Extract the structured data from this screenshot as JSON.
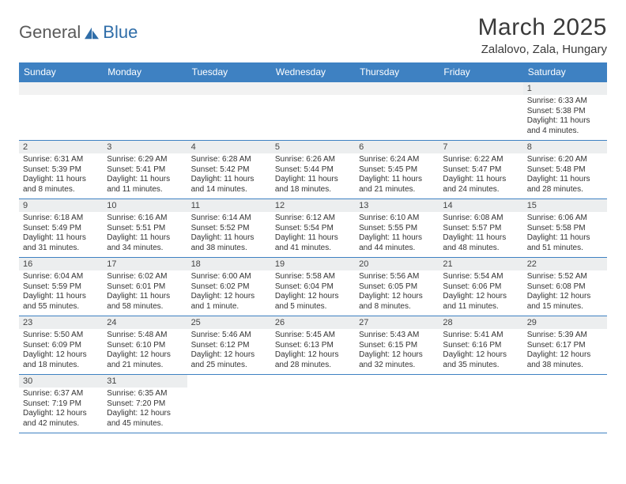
{
  "brand": {
    "text1": "General",
    "text2": "Blue",
    "color1": "#5a5a5a",
    "color2": "#2f6da8",
    "sail": "#2f6da8"
  },
  "title": "March 2025",
  "location": "Zalalovo, Zala, Hungary",
  "colors": {
    "headerBg": "#3e81c2",
    "headerText": "#ffffff",
    "rowBorder": "#3e81c2",
    "dayStripBg": "#eceeef",
    "blankBg": "#f2f2f2",
    "textColor": "#333333"
  },
  "days": [
    "Sunday",
    "Monday",
    "Tuesday",
    "Wednesday",
    "Thursday",
    "Friday",
    "Saturday"
  ],
  "weeks": [
    [
      null,
      null,
      null,
      null,
      null,
      null,
      {
        "n": "1",
        "sr": "Sunrise: 6:33 AM",
        "ss": "Sunset: 5:38 PM",
        "dl": "Daylight: 11 hours and 4 minutes."
      }
    ],
    [
      {
        "n": "2",
        "sr": "Sunrise: 6:31 AM",
        "ss": "Sunset: 5:39 PM",
        "dl": "Daylight: 11 hours and 8 minutes."
      },
      {
        "n": "3",
        "sr": "Sunrise: 6:29 AM",
        "ss": "Sunset: 5:41 PM",
        "dl": "Daylight: 11 hours and 11 minutes."
      },
      {
        "n": "4",
        "sr": "Sunrise: 6:28 AM",
        "ss": "Sunset: 5:42 PM",
        "dl": "Daylight: 11 hours and 14 minutes."
      },
      {
        "n": "5",
        "sr": "Sunrise: 6:26 AM",
        "ss": "Sunset: 5:44 PM",
        "dl": "Daylight: 11 hours and 18 minutes."
      },
      {
        "n": "6",
        "sr": "Sunrise: 6:24 AM",
        "ss": "Sunset: 5:45 PM",
        "dl": "Daylight: 11 hours and 21 minutes."
      },
      {
        "n": "7",
        "sr": "Sunrise: 6:22 AM",
        "ss": "Sunset: 5:47 PM",
        "dl": "Daylight: 11 hours and 24 minutes."
      },
      {
        "n": "8",
        "sr": "Sunrise: 6:20 AM",
        "ss": "Sunset: 5:48 PM",
        "dl": "Daylight: 11 hours and 28 minutes."
      }
    ],
    [
      {
        "n": "9",
        "sr": "Sunrise: 6:18 AM",
        "ss": "Sunset: 5:49 PM",
        "dl": "Daylight: 11 hours and 31 minutes."
      },
      {
        "n": "10",
        "sr": "Sunrise: 6:16 AM",
        "ss": "Sunset: 5:51 PM",
        "dl": "Daylight: 11 hours and 34 minutes."
      },
      {
        "n": "11",
        "sr": "Sunrise: 6:14 AM",
        "ss": "Sunset: 5:52 PM",
        "dl": "Daylight: 11 hours and 38 minutes."
      },
      {
        "n": "12",
        "sr": "Sunrise: 6:12 AM",
        "ss": "Sunset: 5:54 PM",
        "dl": "Daylight: 11 hours and 41 minutes."
      },
      {
        "n": "13",
        "sr": "Sunrise: 6:10 AM",
        "ss": "Sunset: 5:55 PM",
        "dl": "Daylight: 11 hours and 44 minutes."
      },
      {
        "n": "14",
        "sr": "Sunrise: 6:08 AM",
        "ss": "Sunset: 5:57 PM",
        "dl": "Daylight: 11 hours and 48 minutes."
      },
      {
        "n": "15",
        "sr": "Sunrise: 6:06 AM",
        "ss": "Sunset: 5:58 PM",
        "dl": "Daylight: 11 hours and 51 minutes."
      }
    ],
    [
      {
        "n": "16",
        "sr": "Sunrise: 6:04 AM",
        "ss": "Sunset: 5:59 PM",
        "dl": "Daylight: 11 hours and 55 minutes."
      },
      {
        "n": "17",
        "sr": "Sunrise: 6:02 AM",
        "ss": "Sunset: 6:01 PM",
        "dl": "Daylight: 11 hours and 58 minutes."
      },
      {
        "n": "18",
        "sr": "Sunrise: 6:00 AM",
        "ss": "Sunset: 6:02 PM",
        "dl": "Daylight: 12 hours and 1 minute."
      },
      {
        "n": "19",
        "sr": "Sunrise: 5:58 AM",
        "ss": "Sunset: 6:04 PM",
        "dl": "Daylight: 12 hours and 5 minutes."
      },
      {
        "n": "20",
        "sr": "Sunrise: 5:56 AM",
        "ss": "Sunset: 6:05 PM",
        "dl": "Daylight: 12 hours and 8 minutes."
      },
      {
        "n": "21",
        "sr": "Sunrise: 5:54 AM",
        "ss": "Sunset: 6:06 PM",
        "dl": "Daylight: 12 hours and 11 minutes."
      },
      {
        "n": "22",
        "sr": "Sunrise: 5:52 AM",
        "ss": "Sunset: 6:08 PM",
        "dl": "Daylight: 12 hours and 15 minutes."
      }
    ],
    [
      {
        "n": "23",
        "sr": "Sunrise: 5:50 AM",
        "ss": "Sunset: 6:09 PM",
        "dl": "Daylight: 12 hours and 18 minutes."
      },
      {
        "n": "24",
        "sr": "Sunrise: 5:48 AM",
        "ss": "Sunset: 6:10 PM",
        "dl": "Daylight: 12 hours and 21 minutes."
      },
      {
        "n": "25",
        "sr": "Sunrise: 5:46 AM",
        "ss": "Sunset: 6:12 PM",
        "dl": "Daylight: 12 hours and 25 minutes."
      },
      {
        "n": "26",
        "sr": "Sunrise: 5:45 AM",
        "ss": "Sunset: 6:13 PM",
        "dl": "Daylight: 12 hours and 28 minutes."
      },
      {
        "n": "27",
        "sr": "Sunrise: 5:43 AM",
        "ss": "Sunset: 6:15 PM",
        "dl": "Daylight: 12 hours and 32 minutes."
      },
      {
        "n": "28",
        "sr": "Sunrise: 5:41 AM",
        "ss": "Sunset: 6:16 PM",
        "dl": "Daylight: 12 hours and 35 minutes."
      },
      {
        "n": "29",
        "sr": "Sunrise: 5:39 AM",
        "ss": "Sunset: 6:17 PM",
        "dl": "Daylight: 12 hours and 38 minutes."
      }
    ],
    [
      {
        "n": "30",
        "sr": "Sunrise: 6:37 AM",
        "ss": "Sunset: 7:19 PM",
        "dl": "Daylight: 12 hours and 42 minutes."
      },
      {
        "n": "31",
        "sr": "Sunrise: 6:35 AM",
        "ss": "Sunset: 7:20 PM",
        "dl": "Daylight: 12 hours and 45 minutes."
      },
      null,
      null,
      null,
      null,
      null
    ]
  ]
}
